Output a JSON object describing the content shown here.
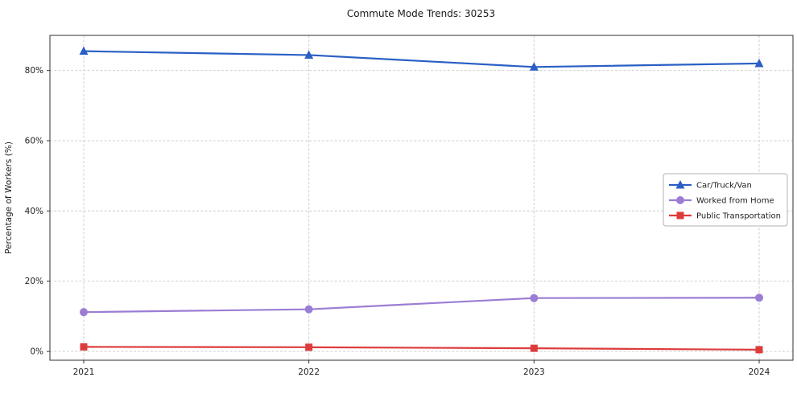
{
  "chart_data": {
    "type": "line",
    "title": "Commute Mode Trends: 30253",
    "xlabel": "",
    "ylabel": "Percentage of Workers (%)",
    "x": [
      2021,
      2022,
      2023,
      2024
    ],
    "x_tick_labels": [
      "2021",
      "2022",
      "2023",
      "2024"
    ],
    "y_ticks": [
      0,
      20,
      40,
      60,
      80
    ],
    "y_tick_labels": [
      "0%",
      "20%",
      "40%",
      "60%",
      "80%"
    ],
    "ylim": [
      -2.5,
      90
    ],
    "grid": true,
    "grid_style": "dashed",
    "legend_position": "center-right",
    "series": [
      {
        "name": "Car/Truck/Van",
        "values": [
          85.5,
          84.4,
          81.0,
          82.0
        ],
        "color": "#2a5fc4",
        "marker": "triangle"
      },
      {
        "name": "Worked from Home",
        "values": [
          11.2,
          12.0,
          15.2,
          15.3
        ],
        "color": "#9b7dd4",
        "marker": "circle"
      },
      {
        "name": "Public Transportation",
        "values": [
          1.3,
          1.2,
          0.9,
          0.5
        ],
        "color": "#dd3c3c",
        "marker": "square"
      }
    ]
  }
}
